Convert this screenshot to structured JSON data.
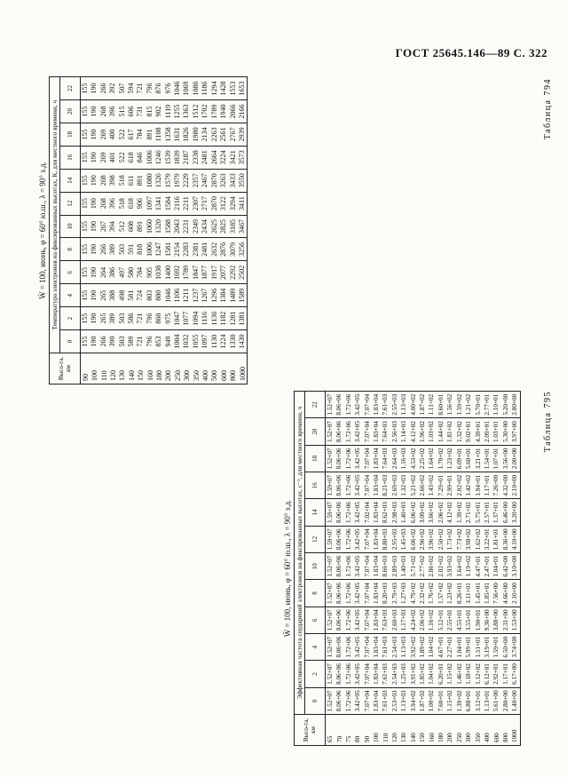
{
  "header": {
    "text": "ГОСТ 25645.146—89 С. 322"
  },
  "tables": [
    {
      "label": "Таблица 794",
      "title": "W̄ = 100, июнь, φ = 60° ю.ш., λ = 90° з.д.",
      "subtitle": "Температура электронов на фиксированных высотах, К, для местного времени, ч",
      "height_header": "Высо-та, км",
      "heights": [
        90,
        100,
        110,
        120,
        130,
        140,
        150,
        160,
        180,
        200,
        250,
        300,
        350,
        400,
        500,
        600,
        800,
        1000
      ],
      "columns": [
        {
          "hour": 0,
          "values": [
            155,
            190,
            266,
            390,
            503,
            589,
            721,
            796,
            853,
            949,
            1004,
            1032,
            1055,
            1097,
            1130,
            1224,
            1330,
            1430
          ]
        },
        {
          "hour": 2,
          "values": [
            155,
            190,
            265,
            389,
            503,
            586,
            721,
            796,
            860,
            975,
            1047,
            1077,
            1094,
            1116,
            1136,
            1182,
            1281,
            1381
          ]
        },
        {
          "hour": 4,
          "values": [
            155,
            190,
            265,
            388,
            498,
            581,
            724,
            803,
            880,
            1046,
            1106,
            1211,
            1237,
            1267,
            1296,
            1384,
            1489,
            1589
          ]
        },
        {
          "hour": 6,
          "values": [
            155,
            190,
            264,
            386,
            497,
            580,
            784,
            905,
            1038,
            1400,
            1692,
            1789,
            1847,
            1877,
            1917,
            2077,
            2292,
            2502
          ]
        },
        {
          "hour": 8,
          "values": [
            155,
            190,
            266,
            389,
            503,
            591,
            818,
            1006,
            1247,
            1581,
            2154,
            2283,
            2381,
            2481,
            2632,
            2876,
            3079,
            3256
          ]
        },
        {
          "hour": 10,
          "values": [
            155,
            190,
            267,
            394,
            512,
            608,
            891,
            1060,
            1320,
            1588,
            2043,
            2231,
            2349,
            2434,
            2625,
            2825,
            3185,
            3467
          ]
        },
        {
          "hour": 12,
          "values": [
            155,
            190,
            268,
            396,
            518,
            618,
            906,
            1097,
            1341,
            1584,
            2116,
            2211,
            2307,
            2717,
            2870,
            3122,
            3294,
            3411
          ]
        },
        {
          "hour": 14,
          "values": [
            155,
            190,
            268,
            398,
            518,
            611,
            891,
            1080,
            1326,
            1579,
            1979,
            2229,
            2357,
            2467,
            2870,
            3263,
            3433,
            3550
          ]
        },
        {
          "hour": 16,
          "values": [
            155,
            190,
            269,
            401,
            522,
            618,
            846,
            1006,
            1246,
            1539,
            1839,
            2187,
            2338,
            2481,
            2664,
            3224,
            3421,
            3573
          ]
        },
        {
          "hour": 18,
          "values": [
            155,
            190,
            269,
            400,
            522,
            617,
            784,
            891,
            1108,
            1358,
            1631,
            1826,
            1980,
            2134,
            2263,
            2561,
            2767,
            2939
          ]
        },
        {
          "hour": 20,
          "values": [
            155,
            190,
            268,
            396,
            515,
            606,
            731,
            815,
            902,
            1119,
            1255,
            1363,
            1512,
            1702,
            1789,
            1940,
            2066,
            2166
          ]
        },
        {
          "hour": 22,
          "values": [
            155,
            190,
            266,
            392,
            507,
            594,
            721,
            796,
            876,
            976,
            1046,
            1069,
            1086,
            1186,
            1294,
            1428,
            1553,
            1653
          ]
        }
      ]
    },
    {
      "label": "Таблица 795",
      "title": "W̄ = 100, июнь, φ = 60° ю.ш., λ = 90° з.д.",
      "subtitle": "Эффективная частота соударений электронов на фиксированных высотах, с⁻¹, для местного времени, ч",
      "height_header": "Высо-та, км",
      "heights": [
        65,
        70,
        75,
        80,
        90,
        100,
        110,
        120,
        130,
        140,
        150,
        160,
        180,
        200,
        250,
        300,
        350,
        400,
        600,
        800,
        1000
      ],
      "columns": [
        {
          "hour": 0,
          "values": [
            "1.52+07",
            "8.06+06",
            "1.72+06",
            "3.42+05",
            "7.07+04",
            "1.83+04",
            "7.61+03",
            "2.53+03",
            "1.13+03",
            "3.94+02",
            "1.87+02",
            "1.00+02",
            "7.60+01",
            "1.15+02",
            "1.39+02",
            "6.88+01",
            "3.12+01",
            "1.13+01",
            "5.61+00",
            "2.80+00",
            "1.40+00"
          ]
        },
        {
          "hour": 2,
          "values": [
            "1.52+07",
            "8.06+06",
            "1.72+06",
            "3.42+05",
            "7.07+04",
            "1.83+04",
            "7.61+03",
            "2.54+03",
            "1.25+03",
            "3.91+02",
            "1.85+02",
            "1.04+02",
            "6.20+01",
            "1.15+02",
            "1.46+02",
            "1.18+02",
            "1.12+02",
            "6.12+01",
            "2.92+01",
            "1.17+01",
            "6.17+00"
          ]
        },
        {
          "hour": 4,
          "values": [
            "1.52+07",
            "8.06+06",
            "1.72+06",
            "3.42+05",
            "7.07+04",
            "1.83+04",
            "7.61+03",
            "2.54+03",
            "1.13+03",
            "3.92+02",
            "1.89+02",
            "1.04+02",
            "4.67+01",
            "2.27+01",
            "1.04+01",
            "5.99+01",
            "1.51+01",
            "3.19+01",
            "1.59+01",
            "6.50+00",
            "3.74+00"
          ]
        },
        {
          "hour": 6,
          "values": [
            "1.52+07",
            "8.06+06",
            "1.72+06",
            "3.42+05",
            "7.07+04",
            "1.83+04",
            "7.63+03",
            "2.60+03",
            "1.17+03",
            "4.24+02",
            "2.06+02",
            "1.16+02",
            "5.12+01",
            "2.55+01",
            "4.55+01",
            "3.55+01",
            "1.90+01",
            "9.36+00",
            "3.88+00",
            "2.31+00",
            "1.53+00"
          ]
        },
        {
          "hour": 8,
          "values": [
            "1.52+07",
            "8.06+06",
            "1.72+06",
            "3.42+05",
            "7.07+04",
            "1.83+04",
            "8.20+03",
            "2.79+03",
            "1.27+03",
            "4.79+02",
            "2.32+02",
            "1.76+02",
            "1.57+02",
            "1.23+02",
            "8.26+01",
            "3.11+01",
            "1.45+01",
            "1.85+01",
            "7.56+00",
            "4.66+00",
            "2.10+00"
          ]
        },
        {
          "hour": 10,
          "values": [
            "1.52+07",
            "8.06+06",
            "1.72+06",
            "3.42+05",
            "7.07+04",
            "1.83+04",
            "8.66+03",
            "2.89+03",
            "1.40+03",
            "5.71+02",
            "2.77+02",
            "2.86+02",
            "2.02+02",
            "3.93+02",
            "1.64+02",
            "1.19+02",
            "4.47+01",
            "2.47+01",
            "1.04+01",
            "6.42+00",
            "3.10+00"
          ]
        },
        {
          "hour": 12,
          "values": [
            "1.59+07",
            "8.06+06",
            "1.72+06",
            "3.42+05",
            "7.07+04",
            "1.83+04",
            "8.80+03",
            "2.95+03",
            "1.45+03",
            "6.06+02",
            "2.96+02",
            "3.96+02",
            "2.50+02",
            "1.73+02",
            "7.73+02",
            "3.98+02",
            "1.62+02",
            "3.22+01",
            "1.81+01",
            "8.36+00",
            "4.10+00"
          ]
        },
        {
          "hour": 14,
          "values": [
            "1.59+07",
            "8.06+06",
            "1.72+06",
            "3.42+05",
            "7.02+04",
            "1.83+04",
            "8.62+03",
            "2.98+03",
            "1.40+03",
            "6.06+02",
            "3.09+02",
            "3.66+02",
            "2.06+02",
            "4.12+02",
            "1.39+02",
            "2.71+02",
            "5.75+01",
            "2.57+01",
            "1.37+01",
            "6.46+00",
            "3.20+00"
          ]
        },
        {
          "hour": 16,
          "values": [
            "1.59+07",
            "8.06+06",
            "1.72+06",
            "3.42+05",
            "7.07+04",
            "1.83+04",
            "8.21+03",
            "2.69+03",
            "1.32+03",
            "5.21+02",
            "2.66+02",
            "1.43+02",
            "7.29+01",
            "2.99+01",
            "2.02+02",
            "1.42+02",
            "1.94+01",
            "1.17+01",
            "7.26+00",
            "4.32+00",
            "2.10+00"
          ]
        },
        {
          "hour": 18,
          "values": [
            "1.52+07",
            "8.06+06",
            "1.72+06",
            "3.42+05",
            "7.07+04",
            "1.83+04",
            "7.64+03",
            "2.64+03",
            "1.16+03",
            "4.53+02",
            "2.25+02",
            "1.64+02",
            "1.70+02",
            "1.23+02",
            "6.09+01",
            "5.60+01",
            "3.21+01",
            "1.54+01",
            "1.07+01",
            "3.56+00",
            "2.00+00"
          ]
        },
        {
          "hour": 20,
          "values": [
            "1.52+07",
            "8.06+06",
            "1.72+06",
            "3.42+05",
            "7.07+04",
            "1.83+04",
            "7.64+03",
            "2.56+03",
            "1.14+03",
            "4.12+02",
            "1.96+02",
            "1.03+02",
            "1.44+02",
            "1.81+02",
            "1.32+02",
            "9.02+01",
            "4.39+01",
            "2.09+01",
            "1.03+01",
            "5.30+00",
            "3.97+00"
          ]
        },
        {
          "hour": 22,
          "values": [
            "1.52+07",
            "8.06+06",
            "1.72+06",
            "3.42+05",
            "7.07+04",
            "1.83+04",
            "7.61+03",
            "2.55+03",
            "1.13+03",
            "4.00+02",
            "1.87+02",
            "1.11+02",
            "8.60+01",
            "1.56+02",
            "1.59+02",
            "1.21+02",
            "5.70+01",
            "2.77+01",
            "1.10+01",
            "5.20+00",
            "2.80+00"
          ]
        }
      ]
    }
  ]
}
